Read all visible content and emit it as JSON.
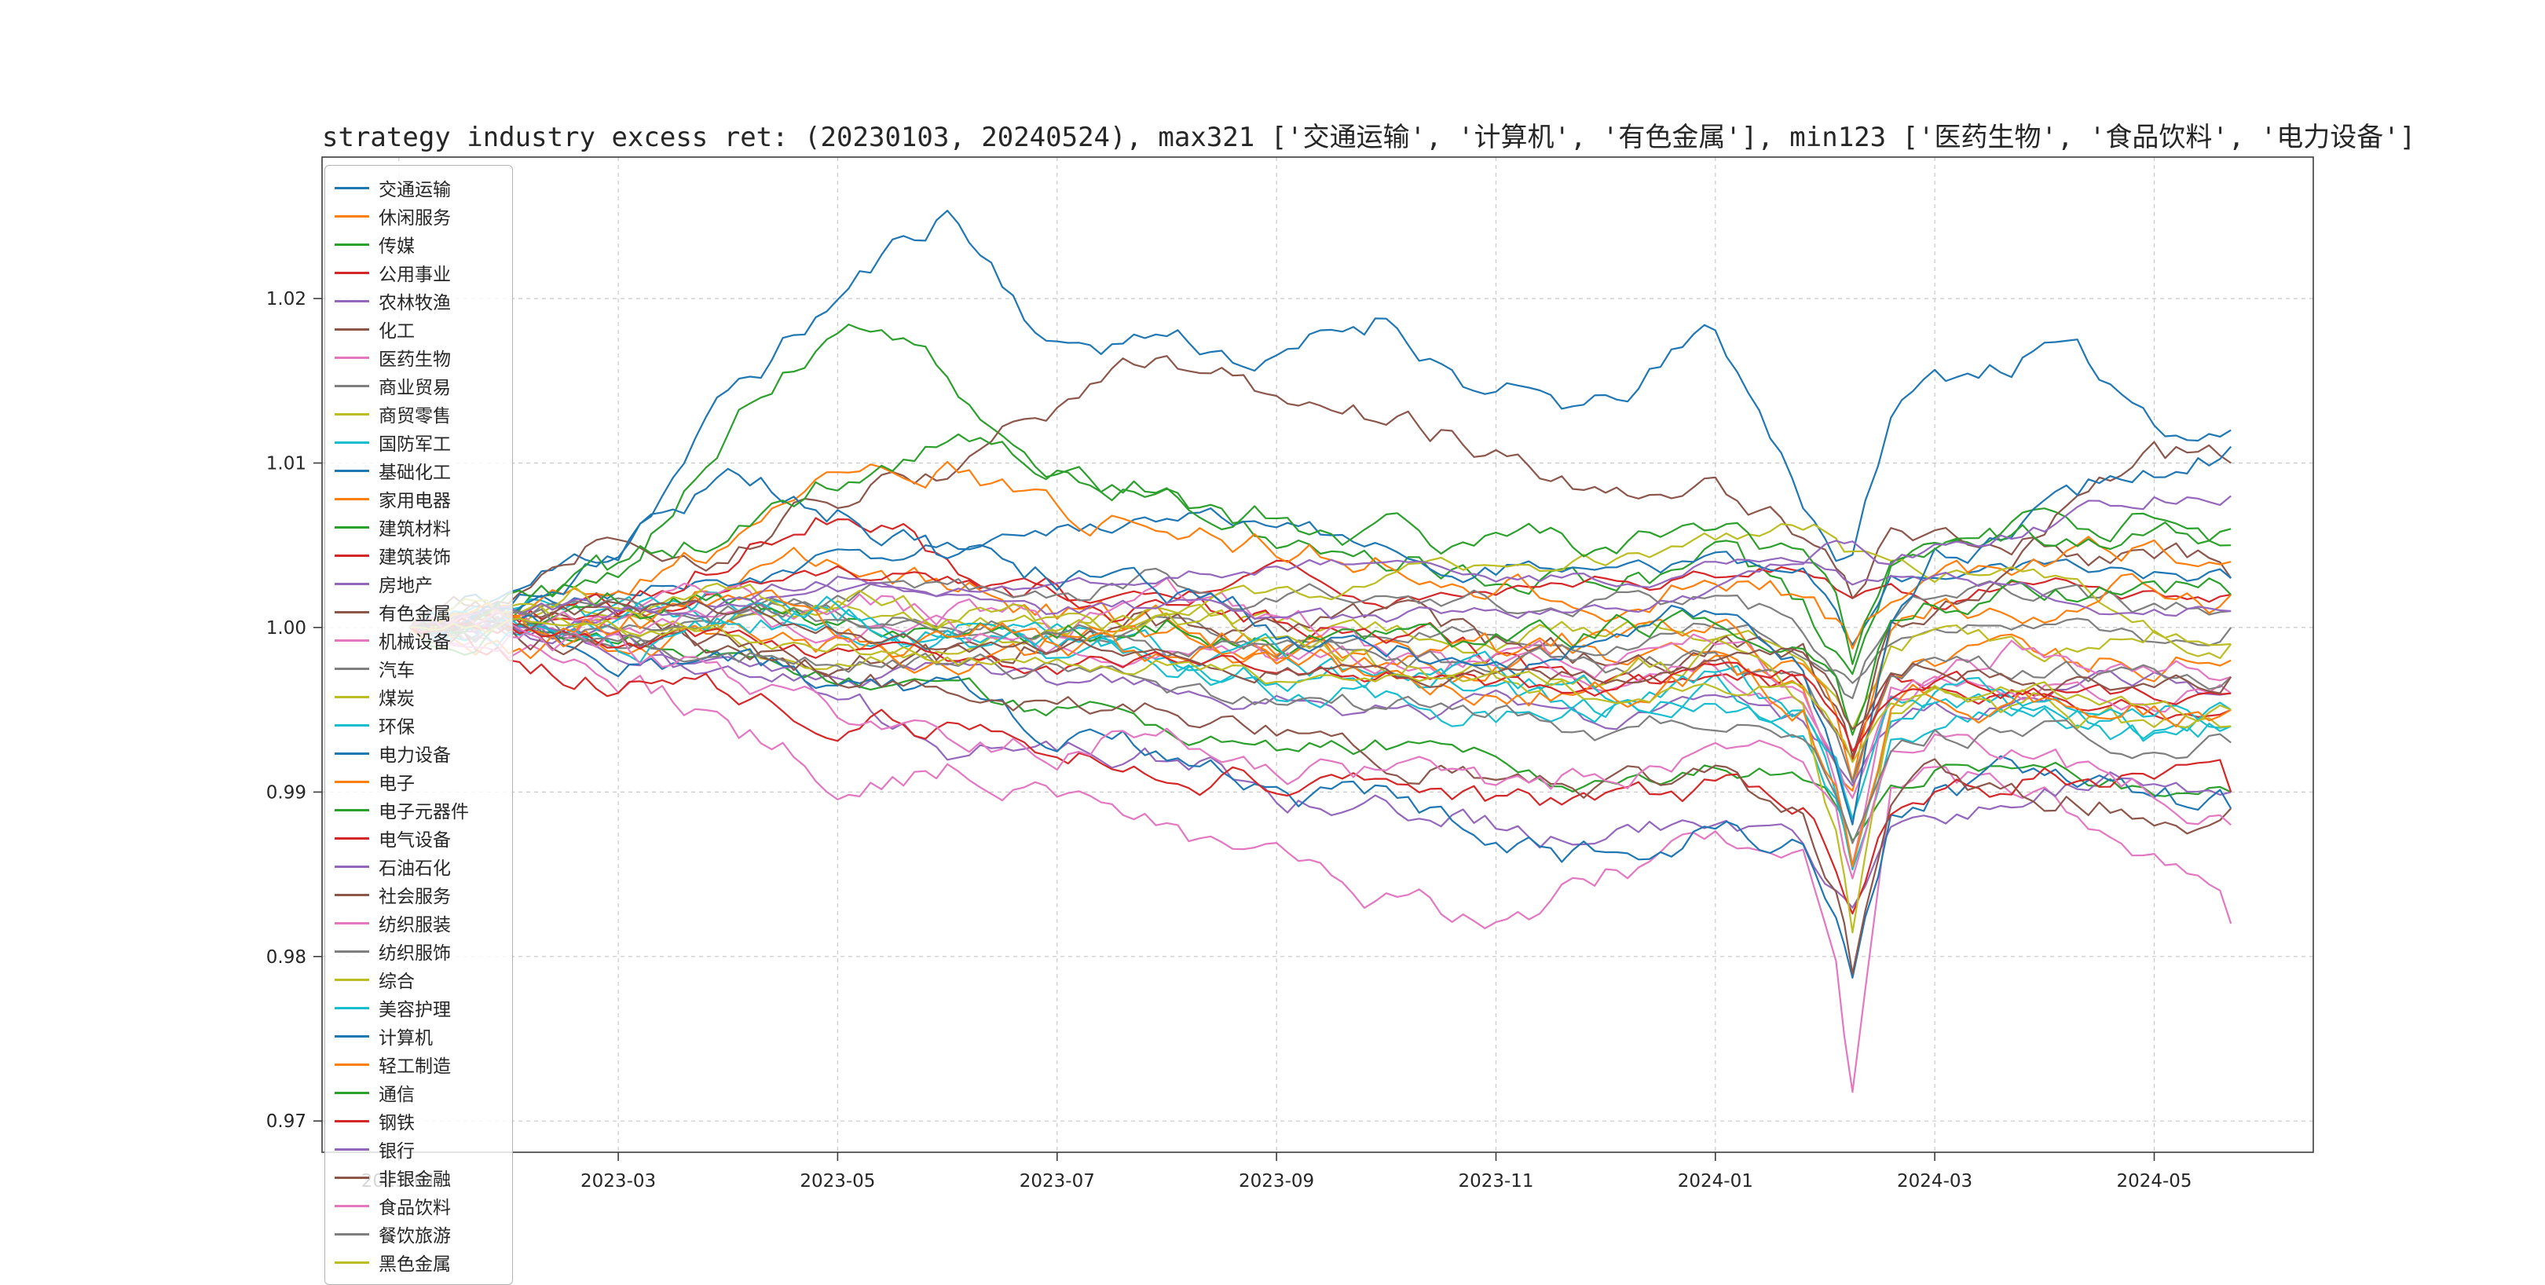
{
  "chart_data": {
    "type": "line",
    "title": "strategy industry excess ret: (20230103, 20240524), max321 ['交通运输', '计算机', '有色金属'], min123 ['医药生物', '食品饮料', '电力设备']",
    "xlabel": "",
    "ylabel": "",
    "grid": true,
    "legend_position": "upper-left-overflowing-bottom",
    "x_axis": {
      "unit": "months since 2023-01",
      "range": [
        -0.7,
        17.45
      ],
      "ticks": [
        {
          "label": "2023-01",
          "t": 0
        },
        {
          "label": "2023-03",
          "t": 2
        },
        {
          "label": "2023-05",
          "t": 4
        },
        {
          "label": "2023-07",
          "t": 6
        },
        {
          "label": "2023-09",
          "t": 8
        },
        {
          "label": "2023-11",
          "t": 10
        },
        {
          "label": "2024-01",
          "t": 12
        },
        {
          "label": "2024-03",
          "t": 14
        },
        {
          "label": "2024-05",
          "t": 16
        }
      ]
    },
    "y_axis": {
      "range": [
        0.9681,
        1.0286
      ],
      "ticks": [
        0.97,
        0.98,
        0.99,
        1.0,
        1.01,
        1.02
      ]
    },
    "x_keyframes": [
      0.1,
      1,
      2,
      3,
      4,
      5,
      6,
      7,
      8,
      9,
      10,
      11,
      12,
      12.8,
      13.1,
      13.25,
      13.6,
      14,
      15,
      16,
      16.7
    ],
    "series": [
      {
        "name": "交通运输",
        "color": "#1f77b4",
        "values": [
          1.0,
          1.002,
          1.005,
          1.014,
          1.02,
          1.0255,
          1.017,
          1.018,
          1.016,
          1.019,
          1.014,
          1.013,
          1.018,
          1.008,
          1.005,
          1.004,
          1.013,
          1.015,
          1.017,
          1.013,
          1.012
        ]
      },
      {
        "name": "休闲服务",
        "color": "#ff7f0e",
        "values": [
          1.0,
          1.001,
          1.0,
          1.002,
          1.004,
          1.002,
          1.001,
          1.0,
          0.999,
          0.999,
          0.998,
          0.998,
          0.999,
          0.996,
          0.992,
          0.99,
          0.997,
          0.998,
          0.997,
          0.998,
          0.998
        ]
      },
      {
        "name": "传媒",
        "color": "#2ca02c",
        "values": [
          1.0,
          1.001,
          1.004,
          1.012,
          1.019,
          1.015,
          1.01,
          1.008,
          1.006,
          1.005,
          1.004,
          1.003,
          1.004,
          1.001,
          0.998,
          0.996,
          1.003,
          1.005,
          1.006,
          1.007,
          1.005
        ]
      },
      {
        "name": "公用事业",
        "color": "#d62728",
        "values": [
          1.0,
          1.0,
          1.001,
          1.002,
          1.003,
          1.003,
          1.002,
          1.002,
          1.003,
          1.002,
          1.002,
          1.003,
          1.003,
          1.004,
          1.003,
          1.002,
          1.003,
          1.002,
          1.003,
          1.002,
          1.002
        ]
      },
      {
        "name": "农林牧渔",
        "color": "#9467bd",
        "values": [
          1.0,
          1.0,
          0.999,
          0.998,
          0.997,
          0.997,
          0.996,
          0.997,
          0.996,
          0.995,
          0.995,
          0.994,
          0.995,
          0.994,
          0.992,
          0.991,
          0.994,
          0.995,
          0.996,
          0.997,
          0.996
        ]
      },
      {
        "name": "化工",
        "color": "#8c564b",
        "values": [
          1.0,
          1.003,
          1.006,
          1.004,
          1.008,
          1.01,
          1.013,
          1.017,
          1.013,
          1.012,
          1.011,
          1.009,
          1.008,
          1.006,
          1.004,
          1.002,
          1.006,
          1.005,
          1.006,
          1.004,
          1.003
        ]
      },
      {
        "name": "医药生物",
        "color": "#e377c2",
        "values": [
          1.0,
          0.999,
          0.997,
          0.994,
          0.991,
          0.992,
          0.99,
          0.988,
          0.985,
          0.983,
          0.982,
          0.985,
          0.987,
          0.986,
          0.98,
          0.9715,
          0.989,
          0.991,
          0.99,
          0.987,
          0.982
        ]
      },
      {
        "name": "商业贸易",
        "color": "#7f7f7f",
        "values": [
          1.0,
          1.0,
          1.0,
          1.001,
          1.001,
          1.0,
          1.0,
          1.0,
          0.999,
          1.0,
          1.0,
          0.999,
          1.0,
          0.999,
          0.998,
          0.997,
          0.999,
          1.0,
          1.0,
          0.999,
          1.0
        ]
      },
      {
        "name": "商贸零售",
        "color": "#bcbd22",
        "values": [
          1.0,
          1.0,
          1.001,
          1.001,
          1.002,
          1.001,
          1.0,
          1.001,
          1.0,
          1.0,
          0.999,
          1.0,
          1.0,
          0.998,
          0.996,
          0.994,
          0.999,
          1.0,
          0.999,
          1.0,
          0.999
        ]
      },
      {
        "name": "国防军工",
        "color": "#17becf",
        "values": [
          1.0,
          1.001,
          1.001,
          1.002,
          1.001,
          1.0,
          0.999,
          0.998,
          0.997,
          0.996,
          0.995,
          0.995,
          0.996,
          0.994,
          0.99,
          0.985,
          0.994,
          0.995,
          0.994,
          0.993,
          0.994
        ]
      },
      {
        "name": "基础化工",
        "color": "#1f77b4",
        "values": [
          1.0,
          1.001,
          1.002,
          1.003,
          1.004,
          1.005,
          1.006,
          1.007,
          1.006,
          1.005,
          1.004,
          1.004,
          1.004,
          1.003,
          1.001,
          0.999,
          1.003,
          1.003,
          1.004,
          1.003,
          1.003
        ]
      },
      {
        "name": "家用电器",
        "color": "#ff7f0e",
        "values": [
          1.0,
          1.001,
          1.003,
          1.005,
          1.008,
          1.01,
          1.007,
          1.006,
          1.005,
          1.004,
          1.003,
          1.002,
          1.003,
          1.002,
          1.0,
          0.998,
          1.002,
          1.003,
          1.004,
          1.005,
          1.004
        ]
      },
      {
        "name": "建筑材料",
        "color": "#2ca02c",
        "values": [
          1.0,
          1.0,
          0.999,
          0.998,
          0.997,
          0.996,
          0.995,
          0.994,
          0.993,
          0.993,
          0.992,
          0.991,
          0.992,
          0.991,
          0.989,
          0.987,
          0.991,
          0.992,
          0.991,
          0.99,
          0.99
        ]
      },
      {
        "name": "建筑装饰",
        "color": "#d62728",
        "values": [
          1.0,
          1.0,
          1.001,
          1.005,
          1.007,
          1.004,
          1.002,
          1.001,
          1.0,
          0.999,
          0.998,
          0.997,
          0.998,
          0.997,
          0.994,
          0.991,
          0.997,
          0.997,
          0.996,
          0.995,
          0.995
        ]
      },
      {
        "name": "房地产",
        "color": "#9467bd",
        "values": [
          1.0,
          1.0,
          0.999,
          0.997,
          0.995,
          0.993,
          0.993,
          0.992,
          0.99,
          0.989,
          0.988,
          0.987,
          0.988,
          0.986,
          0.984,
          0.982,
          0.988,
          0.989,
          0.99,
          0.991,
          0.99
        ]
      },
      {
        "name": "有色金属",
        "color": "#8c564b",
        "values": [
          1.0,
          1.001,
          1.0,
          0.999,
          0.998,
          0.998,
          0.999,
          1.0,
          1.001,
          1.0,
          0.999,
          0.998,
          0.999,
          0.998,
          0.995,
          0.992,
          1.0,
          1.002,
          1.006,
          1.01,
          1.01
        ]
      },
      {
        "name": "机械设备",
        "color": "#e377c2",
        "values": [
          1.0,
          1.001,
          1.001,
          1.002,
          1.001,
          1.001,
          1.0,
          1.001,
          1.0,
          0.999,
          0.998,
          0.998,
          0.999,
          0.996,
          0.991,
          0.987,
          0.997,
          0.998,
          0.999,
          0.998,
          0.997
        ]
      },
      {
        "name": "汽车",
        "color": "#7f7f7f",
        "values": [
          1.0,
          1.0,
          1.001,
          1.0,
          1.001,
          1.002,
          1.002,
          1.003,
          1.002,
          1.003,
          1.002,
          1.001,
          1.002,
          1.0,
          0.998,
          0.996,
          1.001,
          1.002,
          1.002,
          1.001,
          1.001
        ]
      },
      {
        "name": "煤炭",
        "color": "#bcbd22",
        "values": [
          1.0,
          1.001,
          1.0,
          0.999,
          0.998,
          0.999,
          1.0,
          1.001,
          1.002,
          1.003,
          1.004,
          1.004,
          1.005,
          1.006,
          1.006,
          1.005,
          1.005,
          1.004,
          1.003,
          1.0,
          0.999
        ]
      },
      {
        "name": "环保",
        "color": "#17becf",
        "values": [
          1.0,
          1.0,
          1.001,
          1.001,
          1.0,
          0.999,
          0.998,
          0.998,
          0.997,
          0.997,
          0.996,
          0.995,
          0.996,
          0.994,
          0.99,
          0.986,
          0.994,
          0.995,
          0.995,
          0.994,
          0.994
        ]
      },
      {
        "name": "电力设备",
        "color": "#1f77b4",
        "values": [
          1.0,
          1.0,
          0.999,
          0.998,
          0.996,
          0.995,
          0.993,
          0.992,
          0.99,
          0.989,
          0.987,
          0.986,
          0.988,
          0.987,
          0.982,
          0.978,
          0.988,
          0.99,
          0.991,
          0.99,
          0.989
        ]
      },
      {
        "name": "电子",
        "color": "#ff7f0e",
        "values": [
          1.0,
          0.999,
          0.999,
          1.0,
          0.999,
          0.998,
          0.999,
          1.0,
          0.999,
          0.998,
          0.998,
          0.999,
          1.0,
          0.998,
          0.994,
          0.99,
          0.999,
          1.001,
          1.002,
          1.003,
          1.002
        ]
      },
      {
        "name": "电子元器件",
        "color": "#2ca02c",
        "values": [
          1.0,
          1.0,
          1.001,
          1.002,
          1.001,
          1.0,
          1.0,
          1.001,
          1.0,
          0.999,
          0.999,
          1.0,
          1.001,
          0.999,
          0.996,
          0.992,
          1.0,
          1.001,
          1.002,
          1.002,
          1.002
        ]
      },
      {
        "name": "电气设备",
        "color": "#d62728",
        "values": [
          1.0,
          0.998,
          0.997,
          0.996,
          0.995,
          0.994,
          0.993,
          0.992,
          0.991,
          0.99,
          0.989,
          0.989,
          0.99,
          0.989,
          0.986,
          0.983,
          0.989,
          0.99,
          0.991,
          0.991,
          0.99
        ]
      },
      {
        "name": "石油石化",
        "color": "#9467bd",
        "values": [
          1.0,
          1.0,
          1.001,
          1.001,
          1.002,
          1.002,
          1.003,
          1.003,
          1.004,
          1.004,
          1.003,
          1.003,
          1.004,
          1.004,
          1.003,
          1.002,
          1.003,
          1.003,
          1.002,
          1.001,
          1.001
        ]
      },
      {
        "name": "社会服务",
        "color": "#8c564b",
        "values": [
          1.0,
          1.0,
          0.999,
          0.998,
          0.997,
          0.996,
          0.995,
          0.994,
          0.993,
          0.992,
          0.991,
          0.99,
          0.991,
          0.988,
          0.984,
          0.979,
          0.99,
          0.991,
          0.99,
          0.989,
          0.989
        ]
      },
      {
        "name": "纺织服装",
        "color": "#e377c2",
        "values": [
          1.0,
          1.0,
          1.001,
          1.001,
          1.0,
          1.0,
          0.999,
          0.999,
          0.998,
          0.998,
          0.997,
          0.997,
          0.998,
          0.996,
          0.993,
          0.99,
          0.996,
          0.997,
          0.997,
          0.996,
          0.996
        ]
      },
      {
        "name": "纺织服饰",
        "color": "#7f7f7f",
        "values": [
          1.0,
          1.0,
          1.0,
          1.001,
          1.001,
          1.0,
          1.0,
          0.999,
          0.999,
          0.998,
          0.998,
          0.997,
          0.998,
          0.997,
          0.994,
          0.991,
          0.997,
          0.998,
          0.997,
          0.997,
          0.997
        ]
      },
      {
        "name": "综合",
        "color": "#bcbd22",
        "values": [
          1.0,
          1.001,
          1.002,
          1.002,
          1.001,
          1.001,
          1.0,
          1.0,
          0.999,
          0.998,
          0.997,
          0.997,
          0.998,
          0.994,
          0.987,
          0.981,
          0.995,
          0.996,
          0.995,
          0.994,
          0.994
        ]
      },
      {
        "name": "美容护理",
        "color": "#17becf",
        "values": [
          1.0,
          1.0,
          0.999,
          1.0,
          1.001,
          1.0,
          0.999,
          0.998,
          0.998,
          0.997,
          0.997,
          0.996,
          0.997,
          0.995,
          0.992,
          0.988,
          0.995,
          0.996,
          0.996,
          0.995,
          0.995
        ]
      },
      {
        "name": "计算机",
        "color": "#1f77b4",
        "values": [
          1.0,
          1.002,
          1.005,
          1.009,
          1.007,
          1.004,
          1.003,
          1.002,
          1.0,
          0.999,
          0.998,
          0.999,
          1.001,
          0.997,
          0.992,
          0.988,
          1.0,
          1.004,
          1.007,
          1.01,
          1.011
        ]
      },
      {
        "name": "轻工制造",
        "color": "#ff7f0e",
        "values": [
          1.0,
          1.0,
          1.0,
          1.001,
          1.0,
          0.999,
          0.999,
          0.998,
          0.998,
          0.997,
          0.997,
          0.996,
          0.997,
          0.995,
          0.99,
          0.986,
          0.995,
          0.996,
          0.996,
          0.995,
          0.995
        ]
      },
      {
        "name": "通信",
        "color": "#2ca02c",
        "values": [
          1.0,
          1.001,
          1.003,
          1.006,
          1.009,
          1.011,
          1.009,
          1.008,
          1.007,
          1.006,
          1.005,
          1.005,
          1.006,
          1.004,
          1.001,
          0.998,
          1.004,
          1.005,
          1.006,
          1.007,
          1.006
        ]
      },
      {
        "name": "钢铁",
        "color": "#d62728",
        "values": [
          1.0,
          1.0,
          0.999,
          0.999,
          0.998,
          0.998,
          0.997,
          0.998,
          0.997,
          0.997,
          0.996,
          0.996,
          0.997,
          0.997,
          0.995,
          0.993,
          0.996,
          0.997,
          0.996,
          0.996,
          0.996
        ]
      },
      {
        "name": "银行",
        "color": "#9467bd",
        "values": [
          1.0,
          1.001,
          1.001,
          1.002,
          1.003,
          1.002,
          1.001,
          1.001,
          1.0,
          1.0,
          1.001,
          1.001,
          1.002,
          1.004,
          1.005,
          1.005,
          1.004,
          1.005,
          1.006,
          1.008,
          1.008
        ]
      },
      {
        "name": "非银金融",
        "color": "#8c564b",
        "values": [
          1.0,
          1.0,
          1.001,
          1.001,
          1.0,
          0.999,
          0.999,
          0.998,
          0.998,
          0.997,
          0.997,
          0.997,
          0.998,
          0.998,
          0.996,
          0.994,
          0.997,
          0.998,
          0.997,
          0.997,
          0.997
        ]
      },
      {
        "name": "食品饮料",
        "color": "#e377c2",
        "values": [
          1.0,
          1.0,
          0.999,
          0.997,
          0.995,
          0.994,
          0.993,
          0.994,
          0.992,
          0.991,
          0.99,
          0.991,
          0.992,
          0.991,
          0.988,
          0.984,
          0.992,
          0.993,
          0.992,
          0.99,
          0.988
        ]
      },
      {
        "name": "餐饮旅游",
        "color": "#7f7f7f",
        "values": [
          1.0,
          1.0,
          0.999,
          0.999,
          0.998,
          0.998,
          0.997,
          0.996,
          0.996,
          0.995,
          0.995,
          0.994,
          0.995,
          0.993,
          0.99,
          0.987,
          0.993,
          0.994,
          0.994,
          0.993,
          0.993
        ]
      },
      {
        "name": "黑色金属",
        "color": "#bcbd22",
        "values": [
          1.0,
          1.0,
          1.0,
          0.999,
          0.999,
          0.998,
          0.998,
          0.998,
          0.997,
          0.997,
          0.997,
          0.996,
          0.997,
          0.996,
          0.994,
          0.992,
          0.996,
          0.996,
          0.996,
          0.995,
          0.995
        ]
      }
    ]
  }
}
